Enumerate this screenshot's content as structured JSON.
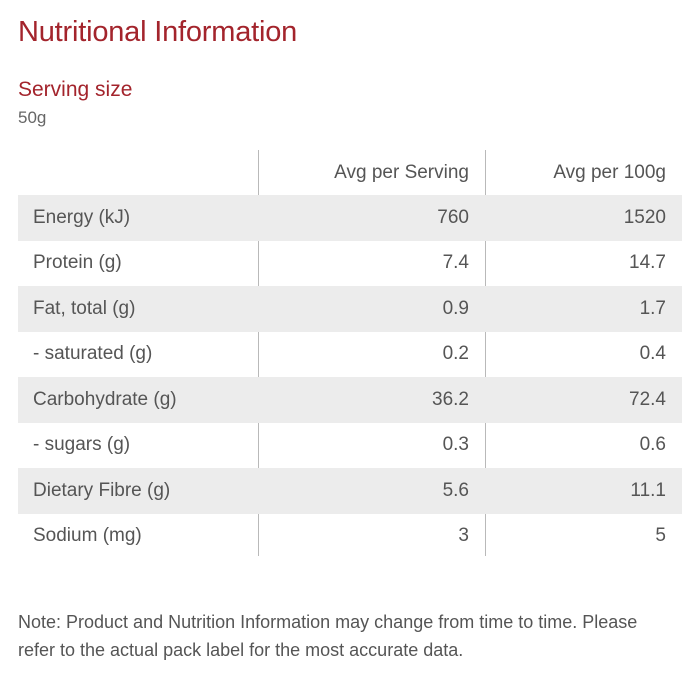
{
  "title": "Nutritional Information",
  "serving": {
    "label": "Serving size",
    "value": "50g"
  },
  "table": {
    "headers": [
      "",
      "Avg per Serving",
      "Avg per 100g"
    ],
    "rows": [
      {
        "name": "Energy (kJ)",
        "per_serving": "760",
        "per_100g": "1520"
      },
      {
        "name": "Protein (g)",
        "per_serving": "7.4",
        "per_100g": "14.7"
      },
      {
        "name": "Fat, total (g)",
        "per_serving": "0.9",
        "per_100g": "1.7"
      },
      {
        "name": "- saturated (g)",
        "per_serving": "0.2",
        "per_100g": "0.4"
      },
      {
        "name": "Carbohydrate (g)",
        "per_serving": "36.2",
        "per_100g": "72.4"
      },
      {
        "name": "- sugars (g)",
        "per_serving": "0.3",
        "per_100g": "0.6"
      },
      {
        "name": "Dietary Fibre (g)",
        "per_serving": "5.6",
        "per_100g": "11.1"
      },
      {
        "name": "Sodium (mg)",
        "per_serving": "3",
        "per_100g": "5"
      }
    ]
  },
  "note": "Note: Product and Nutrition Information may change from time to time. Please refer to the actual pack label for the most accurate data.",
  "colors": {
    "accent": "#a3242c",
    "text": "#555555",
    "row_shade": "#ececec",
    "divider": "#b9b9b9"
  }
}
